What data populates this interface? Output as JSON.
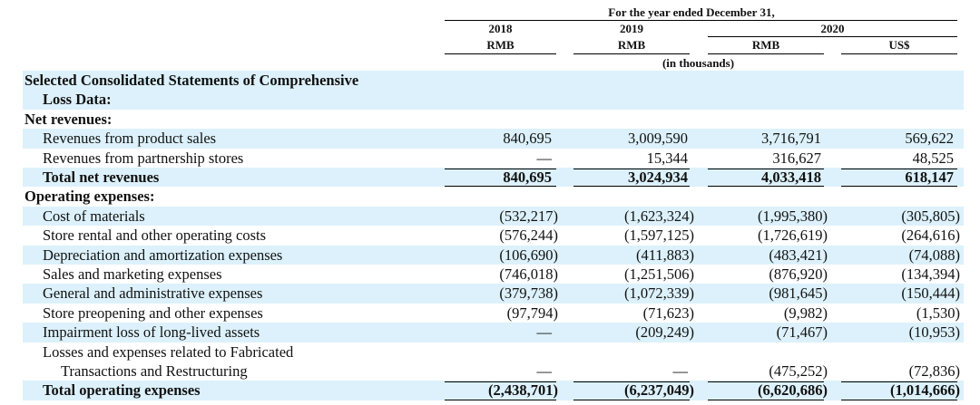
{
  "header": {
    "period": "For the year ended December 31,",
    "years": [
      "2018",
      "2019",
      "2020"
    ],
    "currencies": [
      "RMB",
      "RMB",
      "RMB",
      "US$"
    ],
    "unit": "(in thousands)"
  },
  "table": {
    "rows": [
      {
        "kind": "heading",
        "label": [
          "Selected Consolidated Statements of Comprehensive",
          "Loss Data:"
        ],
        "values": null
      },
      {
        "kind": "heading",
        "label": [
          "Net revenues:"
        ],
        "values": null
      },
      {
        "kind": "item",
        "label": [
          "Revenues from product sales"
        ],
        "values": [
          "840,695",
          "3,009,590",
          "3,716,791",
          "569,622"
        ]
      },
      {
        "kind": "item",
        "label": [
          "Revenues from partnership stores"
        ],
        "values": [
          "—",
          "15,344",
          "316,627",
          "48,525"
        ]
      },
      {
        "kind": "total",
        "label": [
          "Total net revenues"
        ],
        "values": [
          "840,695",
          "3,024,934",
          "4,033,418",
          "618,147"
        ]
      },
      {
        "kind": "heading",
        "label": [
          "Operating expenses:"
        ],
        "values": null
      },
      {
        "kind": "item",
        "label": [
          "Cost of materials"
        ],
        "values": [
          "(532,217)",
          "(1,623,324)",
          "(1,995,380)",
          "(305,805)"
        ]
      },
      {
        "kind": "item",
        "label": [
          "Store rental and other operating costs"
        ],
        "values": [
          "(576,244)",
          "(1,597,125)",
          "(1,726,619)",
          "(264,616)"
        ]
      },
      {
        "kind": "item",
        "label": [
          "Depreciation and amortization expenses"
        ],
        "values": [
          "(106,690)",
          "(411,883)",
          "(483,421)",
          "(74,088)"
        ]
      },
      {
        "kind": "item",
        "label": [
          "Sales and marketing expenses"
        ],
        "values": [
          "(746,018)",
          "(1,251,506)",
          "(876,920)",
          "(134,394)"
        ]
      },
      {
        "kind": "item",
        "label": [
          "General and administrative expenses"
        ],
        "values": [
          "(379,738)",
          "(1,072,339)",
          "(981,645)",
          "(150,444)"
        ]
      },
      {
        "kind": "item",
        "label": [
          "Store preopening and other expenses"
        ],
        "values": [
          "(97,794)",
          "(71,623)",
          "(9,982)",
          "(1,530)"
        ]
      },
      {
        "kind": "item",
        "label": [
          "Impairment loss of long-lived assets"
        ],
        "values": [
          "—",
          "(209,249)",
          "(71,467)",
          "(10,953)"
        ]
      },
      {
        "kind": "item",
        "label": [
          "Losses and expenses related to Fabricated",
          "Transactions and Restructuring"
        ],
        "values": [
          "—",
          "—",
          "(475,252)",
          "(72,836)"
        ]
      },
      {
        "kind": "total",
        "label": [
          "Total operating expenses"
        ],
        "values": [
          "(2,438,701)",
          "(6,237,049)",
          "(6,620,686)",
          "(1,014,666)"
        ]
      }
    ]
  }
}
